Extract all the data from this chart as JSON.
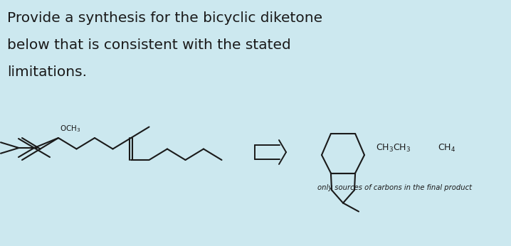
{
  "bg_color": "#cce8ef",
  "title_lines": [
    "Provide a synthesis for the bicyclic diketone",
    "below that is consistent with the stated",
    "limitations."
  ],
  "title_fontsize": 14.5,
  "title_color": "#1a1a1a",
  "line_color": "#1a1a1a",
  "line_width": 1.5,
  "text_color": "#1a1a1a",
  "small_text_color": "#1a1a1a",
  "fig_width": 7.18,
  "fig_height": 3.46,
  "dpi": 100
}
